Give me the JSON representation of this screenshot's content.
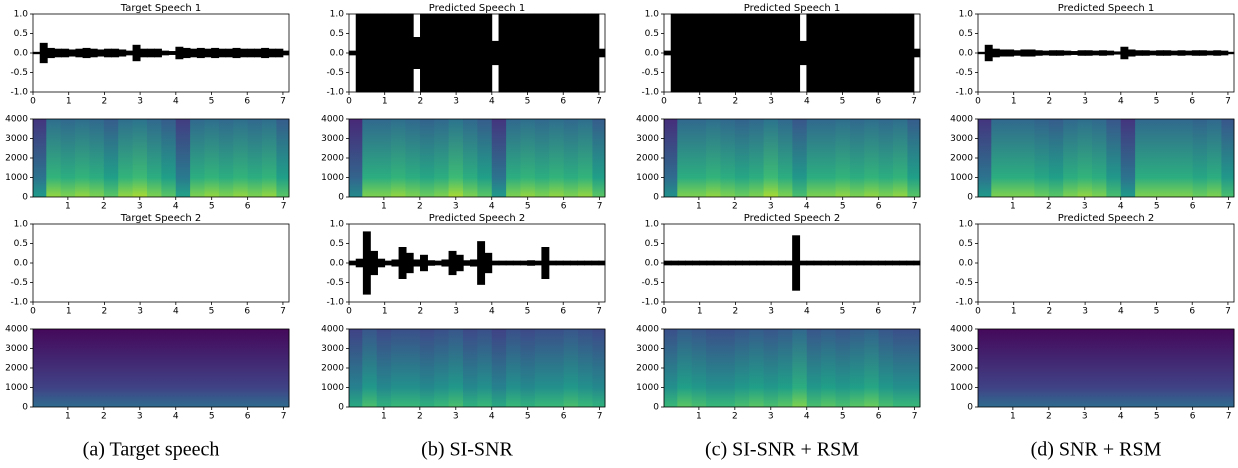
{
  "chart_data": [
    {
      "type": "waveform",
      "title": "Target Speech 1",
      "x": [
        0.1,
        0.3,
        0.5,
        0.7,
        0.9,
        1.1,
        1.3,
        1.5,
        1.7,
        1.9,
        2.1,
        2.3,
        2.5,
        2.7,
        2.9,
        3.1,
        3.3,
        3.5,
        3.7,
        3.9,
        4.1,
        4.3,
        4.5,
        4.7,
        4.9,
        5.1,
        5.3,
        5.5,
        5.7,
        5.9,
        6.1,
        6.3,
        6.5,
        6.7,
        6.9,
        7.1
      ],
      "values": [
        0.02,
        0.25,
        0.12,
        0.1,
        0.1,
        0.08,
        0.1,
        0.12,
        0.1,
        0.08,
        0.1,
        0.1,
        0.08,
        0.05,
        0.2,
        0.1,
        0.1,
        0.1,
        0.05,
        0.04,
        0.15,
        0.12,
        0.1,
        0.12,
        0.1,
        0.12,
        0.1,
        0.1,
        0.12,
        0.1,
        0.1,
        0.1,
        0.12,
        0.1,
        0.1,
        0.05
      ],
      "color": "#000000",
      "xlim": [
        0,
        7.17
      ],
      "ylim": [
        -1,
        1
      ],
      "xticks": [
        0,
        1,
        2,
        3,
        4,
        5,
        6,
        7
      ],
      "yticks": [
        {
          "value": -1,
          "label": "-1.0"
        },
        {
          "value": -0.5,
          "label": "-0.5"
        },
        {
          "value": 0,
          "label": "0.0"
        },
        0.5,
        {
          "value": 1,
          "label": "1.0"
        }
      ]
    },
    {
      "type": "spectrogram",
      "x": [
        0.2,
        0.6,
        1.0,
        1.4,
        1.8,
        2.2,
        2.6,
        3.0,
        3.4,
        3.8,
        4.2,
        4.6,
        5.0,
        5.4,
        5.8,
        6.2,
        6.6,
        7.0
      ],
      "values": [
        0.3,
        0.75,
        0.7,
        0.75,
        0.7,
        0.6,
        0.75,
        0.8,
        0.7,
        0.6,
        0.35,
        0.7,
        0.75,
        0.7,
        0.75,
        0.7,
        0.75,
        0.6
      ],
      "colormap": "viridis",
      "xlim": [
        0.03,
        7.15
      ],
      "ylim": [
        0,
        4000
      ],
      "xticks": [
        1,
        2,
        3,
        4,
        5,
        6,
        7
      ],
      "yticks": [
        0,
        1000,
        2000,
        3000,
        4000
      ]
    },
    {
      "type": "waveform",
      "title": "Target Speech 2",
      "x": [
        0.1,
        0.3,
        0.5,
        0.7,
        0.9,
        1.1,
        1.3,
        1.5,
        1.7,
        1.9,
        2.1,
        2.3,
        2.5,
        2.7,
        2.9,
        3.1,
        3.3,
        3.5,
        3.7,
        3.9,
        4.1,
        4.3,
        4.5,
        4.7,
        4.9,
        5.1,
        5.3,
        5.5,
        5.7,
        5.9,
        6.1,
        6.3,
        6.5,
        6.7,
        6.9,
        7.1
      ],
      "values": [
        0,
        0,
        0,
        0,
        0,
        0,
        0,
        0,
        0,
        0,
        0,
        0,
        0,
        0,
        0,
        0,
        0,
        0,
        0,
        0,
        0,
        0,
        0,
        0,
        0,
        0,
        0,
        0,
        0,
        0,
        0,
        0,
        0,
        0,
        0,
        0
      ],
      "color": "#000000",
      "xlim": [
        0,
        7.17
      ],
      "ylim": [
        -1,
        1
      ],
      "xticks": [
        0,
        1,
        2,
        3,
        4,
        5,
        6,
        7
      ],
      "yticks": [
        {
          "value": -1,
          "label": "-1.0"
        },
        {
          "value": -0.5,
          "label": "-0.5"
        },
        {
          "value": 0,
          "label": "0.0"
        },
        0.5,
        {
          "value": 1,
          "label": "1.0"
        }
      ]
    },
    {
      "type": "spectrogram",
      "x": [
        0.2,
        0.6,
        1.0,
        1.4,
        1.8,
        2.2,
        2.6,
        3.0,
        3.4,
        3.8,
        4.2,
        4.6,
        5.0,
        5.4,
        5.8,
        6.2,
        6.6,
        7.0
      ],
      "values": [
        0,
        0,
        0,
        0,
        0,
        0,
        0,
        0,
        0,
        0,
        0,
        0,
        0,
        0,
        0,
        0,
        0,
        0
      ],
      "colormap": "viridis",
      "xlim": [
        0.03,
        7.15
      ],
      "ylim": [
        0,
        4000
      ],
      "xticks": [
        1,
        2,
        3,
        4,
        5,
        6,
        7
      ],
      "yticks": [
        0,
        1000,
        2000,
        3000,
        4000
      ]
    },
    {
      "type": "waveform",
      "title": "Predicted Speech 1",
      "x": [
        0.1,
        0.3,
        0.5,
        0.7,
        0.9,
        1.1,
        1.3,
        1.5,
        1.7,
        1.9,
        2.1,
        2.3,
        2.5,
        2.7,
        2.9,
        3.1,
        3.3,
        3.5,
        3.7,
        3.9,
        4.1,
        4.3,
        4.5,
        4.7,
        4.9,
        5.1,
        5.3,
        5.5,
        5.7,
        5.9,
        6.1,
        6.3,
        6.5,
        6.7,
        6.9,
        7.1
      ],
      "values": [
        0.05,
        1,
        1,
        1,
        1,
        1,
        1,
        1,
        1,
        0.4,
        1,
        1,
        1,
        1,
        1,
        1,
        1,
        1,
        1,
        1,
        0.3,
        1,
        1,
        1,
        1,
        1,
        1,
        1,
        1,
        1,
        1,
        1,
        1,
        1,
        1,
        0.1
      ],
      "color": "#000000",
      "xlim": [
        0,
        7.17
      ],
      "ylim": [
        -1,
        1
      ],
      "xticks": [
        0,
        1,
        2,
        3,
        4,
        5,
        6,
        7
      ],
      "yticks": [
        {
          "value": -1,
          "label": "-1.0"
        },
        {
          "value": -0.5,
          "label": "-0.5"
        },
        {
          "value": 0,
          "label": "0.0"
        },
        0.5,
        {
          "value": 1,
          "label": "1.0"
        }
      ]
    },
    {
      "type": "spectrogram",
      "x": [
        0.2,
        0.6,
        1.0,
        1.4,
        1.8,
        2.2,
        2.6,
        3.0,
        3.4,
        3.8,
        4.2,
        4.6,
        5.0,
        5.4,
        5.8,
        6.2,
        6.6,
        7.0
      ],
      "values": [
        0.2,
        0.7,
        0.7,
        0.75,
        0.7,
        0.65,
        0.7,
        0.8,
        0.7,
        0.6,
        0.3,
        0.7,
        0.75,
        0.7,
        0.75,
        0.7,
        0.75,
        0.6
      ],
      "colormap": "viridis",
      "xlim": [
        0.03,
        7.15
      ],
      "ylim": [
        0,
        4000
      ],
      "xticks": [
        1,
        2,
        3,
        4,
        5,
        6,
        7
      ],
      "yticks": [
        0,
        1000,
        2000,
        3000,
        4000
      ]
    },
    {
      "type": "waveform",
      "title": "Predicted Speech 2",
      "x": [
        0.1,
        0.3,
        0.5,
        0.7,
        0.9,
        1.1,
        1.3,
        1.5,
        1.7,
        1.9,
        2.1,
        2.3,
        2.5,
        2.7,
        2.9,
        3.1,
        3.3,
        3.5,
        3.7,
        3.9,
        4.1,
        4.3,
        4.5,
        4.7,
        4.9,
        5.1,
        5.3,
        5.5,
        5.7,
        5.9,
        6.1,
        6.3,
        6.5,
        6.7,
        6.9,
        7.1
      ],
      "values": [
        0.05,
        0.1,
        0.8,
        0.3,
        0.1,
        0.05,
        0.08,
        0.4,
        0.25,
        0.08,
        0.2,
        0.06,
        0.05,
        0.08,
        0.3,
        0.2,
        0.06,
        0.08,
        0.55,
        0.25,
        0.05,
        0.05,
        0.05,
        0.05,
        0.05,
        0.06,
        0.05,
        0.4,
        0.05,
        0.05,
        0.05,
        0.05,
        0.05,
        0.05,
        0.05,
        0.05
      ],
      "color": "#000000",
      "xlim": [
        0,
        7.17
      ],
      "ylim": [
        -1,
        1
      ],
      "xticks": [
        0,
        1,
        2,
        3,
        4,
        5,
        6,
        7
      ],
      "yticks": [
        {
          "value": -1,
          "label": "-1.0"
        },
        {
          "value": -0.5,
          "label": "-0.5"
        },
        {
          "value": 0,
          "label": "0.0"
        },
        0.5,
        {
          "value": 1,
          "label": "1.0"
        }
      ]
    },
    {
      "type": "spectrogram",
      "x": [
        0.2,
        0.6,
        1.0,
        1.4,
        1.8,
        2.2,
        2.6,
        3.0,
        3.4,
        3.8,
        4.2,
        4.6,
        5.0,
        5.4,
        5.8,
        6.2,
        6.6,
        7.0
      ],
      "values": [
        0.4,
        0.55,
        0.45,
        0.5,
        0.5,
        0.45,
        0.5,
        0.55,
        0.45,
        0.5,
        0.4,
        0.5,
        0.45,
        0.5,
        0.5,
        0.55,
        0.5,
        0.45
      ],
      "colormap": "viridis",
      "xlim": [
        0.03,
        7.15
      ],
      "ylim": [
        0,
        4000
      ],
      "xticks": [
        1,
        2,
        3,
        4,
        5,
        6,
        7
      ],
      "yticks": [
        0,
        1000,
        2000,
        3000,
        4000
      ]
    },
    {
      "type": "waveform",
      "title": "Predicted Speech 1",
      "x": [
        0.1,
        0.3,
        0.5,
        0.7,
        0.9,
        1.1,
        1.3,
        1.5,
        1.7,
        1.9,
        2.1,
        2.3,
        2.5,
        2.7,
        2.9,
        3.1,
        3.3,
        3.5,
        3.7,
        3.9,
        4.1,
        4.3,
        4.5,
        4.7,
        4.9,
        5.1,
        5.3,
        5.5,
        5.7,
        5.9,
        6.1,
        6.3,
        6.5,
        6.7,
        6.9,
        7.1
      ],
      "values": [
        0.05,
        1,
        1,
        1,
        1,
        1,
        1,
        1,
        1,
        1,
        1,
        1,
        1,
        1,
        1,
        1,
        1,
        1,
        1,
        0.3,
        1,
        1,
        1,
        1,
        1,
        1,
        1,
        1,
        1,
        1,
        1,
        1,
        1,
        1,
        1,
        0.1
      ],
      "color": "#000000",
      "xlim": [
        0,
        7.17
      ],
      "ylim": [
        -1,
        1
      ],
      "xticks": [
        0,
        1,
        2,
        3,
        4,
        5,
        6,
        7
      ],
      "yticks": [
        {
          "value": -1,
          "label": "-1.0"
        },
        {
          "value": -0.5,
          "label": "-0.5"
        },
        {
          "value": 0,
          "label": "0.0"
        },
        0.5,
        {
          "value": 1,
          "label": "1.0"
        }
      ]
    },
    {
      "type": "spectrogram",
      "x": [
        0.2,
        0.6,
        1.0,
        1.4,
        1.8,
        2.2,
        2.6,
        3.0,
        3.4,
        3.8,
        4.2,
        4.6,
        5.0,
        5.4,
        5.8,
        6.2,
        6.6,
        7.0
      ],
      "values": [
        0.25,
        0.7,
        0.7,
        0.75,
        0.7,
        0.65,
        0.7,
        0.8,
        0.7,
        0.55,
        0.7,
        0.7,
        0.75,
        0.7,
        0.75,
        0.7,
        0.75,
        0.6
      ],
      "colormap": "viridis",
      "xlim": [
        0.03,
        7.15
      ],
      "ylim": [
        0,
        4000
      ],
      "xticks": [
        1,
        2,
        3,
        4,
        5,
        6,
        7
      ],
      "yticks": [
        0,
        1000,
        2000,
        3000,
        4000
      ]
    },
    {
      "type": "waveform",
      "title": "Predicted Speech 2",
      "x": [
        0.1,
        0.3,
        0.5,
        0.7,
        0.9,
        1.1,
        1.3,
        1.5,
        1.7,
        1.9,
        2.1,
        2.3,
        2.5,
        2.7,
        2.9,
        3.1,
        3.3,
        3.5,
        3.7,
        3.9,
        4.1,
        4.3,
        4.5,
        4.7,
        4.9,
        5.1,
        5.3,
        5.5,
        5.7,
        5.9,
        6.1,
        6.3,
        6.5,
        6.7,
        6.9,
        7.1
      ],
      "values": [
        0.05,
        0.05,
        0.05,
        0.05,
        0.05,
        0.05,
        0.05,
        0.05,
        0.05,
        0.05,
        0.05,
        0.05,
        0.05,
        0.05,
        0.05,
        0.05,
        0.05,
        0.05,
        0.7,
        0.05,
        0.05,
        0.05,
        0.05,
        0.05,
        0.05,
        0.05,
        0.05,
        0.05,
        0.05,
        0.05,
        0.05,
        0.05,
        0.05,
        0.05,
        0.05,
        0.05
      ],
      "color": "#000000",
      "xlim": [
        0,
        7.17
      ],
      "ylim": [
        -1,
        1
      ],
      "xticks": [
        0,
        1,
        2,
        3,
        4,
        5,
        6,
        7
      ],
      "yticks": [
        {
          "value": -1,
          "label": "-1.0"
        },
        {
          "value": -0.5,
          "label": "-0.5"
        },
        {
          "value": 0,
          "label": "0.0"
        },
        0.5,
        {
          "value": 1,
          "label": "1.0"
        }
      ]
    },
    {
      "type": "spectrogram",
      "x": [
        0.2,
        0.6,
        1.0,
        1.4,
        1.8,
        2.2,
        2.6,
        3.0,
        3.4,
        3.8,
        4.2,
        4.6,
        5.0,
        5.4,
        5.8,
        6.2,
        6.6,
        7.0
      ],
      "values": [
        0.5,
        0.6,
        0.55,
        0.5,
        0.5,
        0.55,
        0.6,
        0.55,
        0.6,
        0.7,
        0.55,
        0.6,
        0.55,
        0.6,
        0.65,
        0.55,
        0.5,
        0.5
      ],
      "colormap": "viridis",
      "xlim": [
        0.03,
        7.15
      ],
      "ylim": [
        0,
        4000
      ],
      "xticks": [
        1,
        2,
        3,
        4,
        5,
        6,
        7
      ],
      "yticks": [
        0,
        1000,
        2000,
        3000,
        4000
      ]
    },
    {
      "type": "waveform",
      "title": "Predicted Speech 1",
      "x": [
        0.1,
        0.3,
        0.5,
        0.7,
        0.9,
        1.1,
        1.3,
        1.5,
        1.7,
        1.9,
        2.1,
        2.3,
        2.5,
        2.7,
        2.9,
        3.1,
        3.3,
        3.5,
        3.7,
        3.9,
        4.1,
        4.3,
        4.5,
        4.7,
        4.9,
        5.1,
        5.3,
        5.5,
        5.7,
        5.9,
        6.1,
        6.3,
        6.5,
        6.7,
        6.9,
        7.1
      ],
      "values": [
        0.02,
        0.2,
        0.1,
        0.08,
        0.08,
        0.06,
        0.08,
        0.08,
        0.06,
        0.05,
        0.06,
        0.06,
        0.05,
        0.04,
        0.06,
        0.06,
        0.05,
        0.06,
        0.05,
        0.03,
        0.15,
        0.08,
        0.06,
        0.06,
        0.05,
        0.06,
        0.06,
        0.05,
        0.06,
        0.05,
        0.06,
        0.06,
        0.05,
        0.06,
        0.05,
        0.02
      ],
      "color": "#000000",
      "xlim": [
        0,
        7.17
      ],
      "ylim": [
        -1,
        1
      ],
      "xticks": [
        0,
        1,
        2,
        3,
        4,
        5,
        6,
        7
      ],
      "yticks": [
        {
          "value": -1,
          "label": "-1.0"
        },
        {
          "value": -0.5,
          "label": "-0.5"
        },
        {
          "value": 0,
          "label": "0.0"
        },
        0.5,
        {
          "value": 1,
          "label": "1.0"
        }
      ]
    },
    {
      "type": "spectrogram",
      "x": [
        0.2,
        0.6,
        1.0,
        1.4,
        1.8,
        2.2,
        2.6,
        3.0,
        3.4,
        3.8,
        4.2,
        4.6,
        5.0,
        5.4,
        5.8,
        6.2,
        6.6,
        7.0
      ],
      "values": [
        0.3,
        0.7,
        0.7,
        0.7,
        0.65,
        0.6,
        0.7,
        0.75,
        0.7,
        0.55,
        0.3,
        0.7,
        0.7,
        0.7,
        0.7,
        0.65,
        0.7,
        0.55
      ],
      "colormap": "viridis",
      "xlim": [
        0.03,
        7.15
      ],
      "ylim": [
        0,
        4000
      ],
      "xticks": [
        1,
        2,
        3,
        4,
        5,
        6,
        7
      ],
      "yticks": [
        0,
        1000,
        2000,
        3000,
        4000
      ]
    },
    {
      "type": "waveform",
      "title": "Predicted Speech 2",
      "x": [
        0.1,
        0.3,
        0.5,
        0.7,
        0.9,
        1.1,
        1.3,
        1.5,
        1.7,
        1.9,
        2.1,
        2.3,
        2.5,
        2.7,
        2.9,
        3.1,
        3.3,
        3.5,
        3.7,
        3.9,
        4.1,
        4.3,
        4.5,
        4.7,
        4.9,
        5.1,
        5.3,
        5.5,
        5.7,
        5.9,
        6.1,
        6.3,
        6.5,
        6.7,
        6.9,
        7.1
      ],
      "values": [
        0,
        0,
        0,
        0,
        0,
        0,
        0,
        0,
        0,
        0,
        0,
        0,
        0,
        0,
        0,
        0,
        0,
        0,
        0,
        0,
        0,
        0,
        0,
        0,
        0,
        0,
        0,
        0,
        0,
        0,
        0,
        0,
        0,
        0,
        0,
        0
      ],
      "color": "#000000",
      "xlim": [
        0,
        7.17
      ],
      "ylim": [
        -1,
        1
      ],
      "xticks": [
        0,
        1,
        2,
        3,
        4,
        5,
        6,
        7
      ],
      "yticks": [
        {
          "value": -1,
          "label": "-1.0"
        },
        {
          "value": -0.5,
          "label": "-0.5"
        },
        {
          "value": 0,
          "label": "0.0"
        },
        0.5,
        {
          "value": 1,
          "label": "1.0"
        }
      ]
    },
    {
      "type": "spectrogram",
      "x": [
        0.2,
        0.6,
        1.0,
        1.4,
        1.8,
        2.2,
        2.6,
        3.0,
        3.4,
        3.8,
        4.2,
        4.6,
        5.0,
        5.4,
        5.8,
        6.2,
        6.6,
        7.0
      ],
      "values": [
        0,
        0,
        0,
        0,
        0,
        0,
        0,
        0,
        0,
        0,
        0,
        0,
        0,
        0,
        0,
        0,
        0,
        0
      ],
      "colormap": "viridis",
      "xlim": [
        0.03,
        7.15
      ],
      "ylim": [
        0,
        4000
      ],
      "xticks": [
        1,
        2,
        3,
        4,
        5,
        6,
        7
      ],
      "yticks": [
        0,
        1000,
        2000,
        3000,
        4000
      ]
    }
  ],
  "captions": [
    "(a) Target speech",
    "(b) SI-SNR",
    "(c) SI-SNR + RSM",
    "(d) SNR + RSM"
  ]
}
